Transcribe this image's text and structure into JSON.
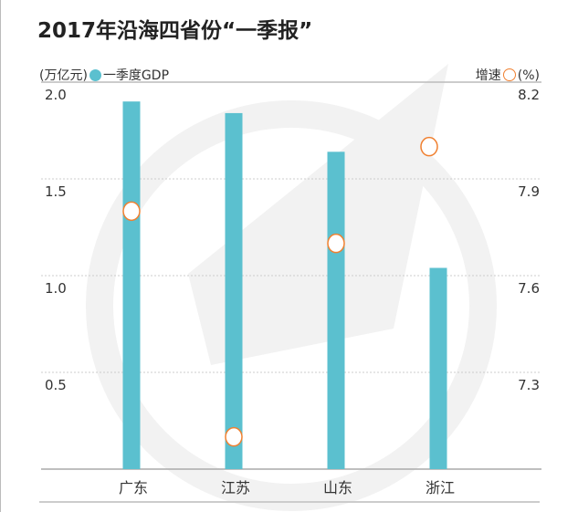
{
  "title": "2017年沿海四省份“一季报”",
  "legend": {
    "left_unit": "(万亿元)",
    "bar_series": "一季度GDP",
    "right_label": "增速",
    "right_unit": "(%)"
  },
  "colors": {
    "bar": "#5bc0cf",
    "marker": "#f08030",
    "watermark": "#f2f2f2"
  },
  "chart_data": {
    "type": "bar+scatter",
    "title": "2017年沿海四省份“一季报”",
    "categories": [
      "广东",
      "江苏",
      "山东",
      "浙江"
    ],
    "series": [
      {
        "name": "一季度GDP",
        "type": "bar",
        "axis": "left",
        "values": [
          1.9,
          1.84,
          1.64,
          1.04
        ]
      },
      {
        "name": "增速",
        "type": "scatter",
        "axis": "right",
        "values": [
          7.8,
          7.1,
          7.7,
          8.0
        ]
      }
    ],
    "left_axis": {
      "label": "(万亿元)",
      "ylim": [
        0,
        2.0
      ],
      "ticks": [
        "2.0",
        "1.5",
        "1.0",
        "0.5"
      ],
      "tick_values": [
        2.0,
        1.5,
        1.0,
        0.5
      ]
    },
    "right_axis": {
      "label": "(%)",
      "ylim": [
        7.0,
        8.2
      ],
      "ticks": [
        "8.2",
        "7.9",
        "7.6",
        "7.3"
      ],
      "tick_values": [
        8.2,
        7.9,
        7.6,
        7.3
      ]
    },
    "grid": true,
    "legend_placement": "top"
  }
}
